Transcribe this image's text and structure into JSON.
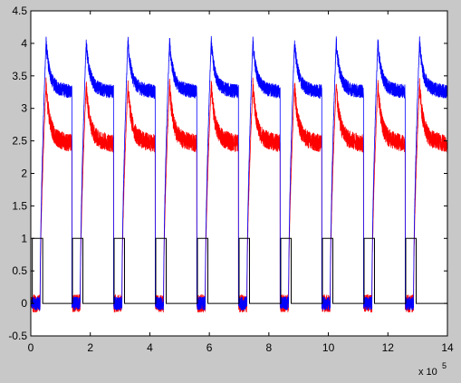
{
  "chart_data": {
    "type": "line",
    "title": "",
    "xlabel": "",
    "ylabel": "",
    "xlim": [
      0,
      14
    ],
    "ylim": [
      -0.5,
      4.5
    ],
    "x_multiplier_label": "x 10",
    "x_multiplier_exp": "5",
    "grid": false,
    "legend": "none",
    "x_ticks": [
      "0",
      "2",
      "4",
      "6",
      "8",
      "10",
      "12",
      "14"
    ],
    "y_ticks": [
      "-0.5",
      "0",
      "0.5",
      "1",
      "1.5",
      "2",
      "2.5",
      "3",
      "3.5",
      "4",
      "4.5"
    ],
    "x_tick_values": [
      0,
      2,
      4,
      6,
      8,
      10,
      12,
      14
    ],
    "y_tick_values": [
      -0.5,
      0,
      0.5,
      1,
      1.5,
      2,
      2.5,
      3,
      3.5,
      4,
      4.5
    ],
    "cycle_starts": [
      0.05,
      1.4,
      2.8,
      4.2,
      5.6,
      7.0,
      8.4,
      9.8,
      11.2,
      12.6
    ],
    "pulse_width": 0.35,
    "series": [
      {
        "color": "#0000ff",
        "kind": "noisy_decay",
        "rise_time": 0.2,
        "peak": 4.02,
        "plateau": 3.32,
        "end_level": 3.25,
        "noise_band": 0.22,
        "baseline": 0.0,
        "baseline_noise": 0.15
      },
      {
        "color": "#ff0000",
        "kind": "noisy_decay",
        "rise_time": 0.2,
        "peak": 3.35,
        "plateau": 2.55,
        "end_level": 2.45,
        "noise_band": 0.28,
        "baseline": 0.0,
        "baseline_noise": 0.2
      },
      {
        "color": "#000000",
        "kind": "square_wave",
        "high": 1,
        "low": 0
      }
    ]
  }
}
